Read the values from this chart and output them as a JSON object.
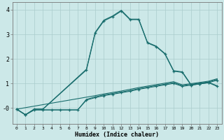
{
  "xlabel": "Humidex (Indice chaleur)",
  "bg_color": "#cce8e8",
  "grid_color": "#aacccc",
  "line_color": "#1a6e6e",
  "xlim": [
    -0.5,
    23.5
  ],
  "ylim": [
    -0.65,
    4.3
  ],
  "xticks": [
    0,
    1,
    2,
    3,
    4,
    5,
    6,
    7,
    8,
    9,
    10,
    11,
    12,
    13,
    14,
    15,
    16,
    17,
    18,
    19,
    20,
    21,
    22,
    23
  ],
  "yticks": [
    0,
    1,
    2,
    3,
    4
  ],
  "series": [
    {
      "x": [
        0,
        1,
        2,
        3,
        4,
        5,
        6,
        7,
        8,
        9,
        10,
        11,
        12,
        13,
        14,
        15,
        16,
        17,
        18,
        19,
        20,
        21,
        22,
        23
      ],
      "y": [
        -0.05,
        -0.28,
        -0.08,
        -0.08,
        -0.08,
        -0.08,
        -0.08,
        -0.08,
        0.32,
        0.42,
        0.5,
        0.56,
        0.62,
        0.68,
        0.76,
        0.82,
        0.88,
        0.94,
        1.0,
        0.88,
        0.93,
        0.98,
        1.03,
        1.13
      ],
      "marker": "+",
      "linestyle": "-",
      "linewidth": 0.8,
      "markersize": 3.5
    },
    {
      "x": [
        0,
        1,
        2,
        3,
        4,
        5,
        6,
        7,
        8,
        9,
        10,
        11,
        12,
        13,
        14,
        15,
        16,
        17,
        18,
        19,
        20,
        21,
        22,
        23
      ],
      "y": [
        -0.05,
        -0.28,
        -0.08,
        -0.08,
        -0.08,
        -0.08,
        -0.08,
        -0.08,
        0.35,
        0.45,
        0.53,
        0.59,
        0.65,
        0.71,
        0.79,
        0.85,
        0.91,
        0.97,
        1.03,
        0.91,
        0.96,
        1.01,
        1.06,
        1.16
      ],
      "marker": null,
      "linestyle": "-",
      "linewidth": 0.8,
      "markersize": 0
    },
    {
      "x": [
        0,
        9,
        10,
        11,
        12,
        13,
        14,
        15,
        16,
        17,
        18,
        19,
        20,
        21,
        22,
        23
      ],
      "y": [
        -0.05,
        0.5,
        0.57,
        0.63,
        0.69,
        0.76,
        0.83,
        0.89,
        0.95,
        1.01,
        1.07,
        0.94,
        0.99,
        1.04,
        1.09,
        1.19
      ],
      "marker": null,
      "linestyle": "-",
      "linewidth": 0.8,
      "markersize": 0
    },
    {
      "x": [
        0,
        1,
        2,
        3,
        8,
        9,
        10,
        11,
        12,
        13,
        14,
        15,
        16,
        17,
        18,
        19,
        20,
        21,
        22,
        23
      ],
      "y": [
        -0.05,
        -0.28,
        -0.05,
        -0.05,
        1.55,
        3.05,
        3.55,
        3.72,
        3.95,
        3.6,
        3.6,
        2.65,
        2.5,
        2.2,
        1.5,
        1.45,
        0.93,
        0.98,
        1.03,
        0.88
      ],
      "marker": "+",
      "linestyle": "-",
      "linewidth": 0.9,
      "markersize": 3.5
    },
    {
      "x": [
        0,
        1,
        2,
        3,
        8,
        9,
        10,
        11,
        12,
        13,
        14,
        15,
        16,
        17,
        18,
        19,
        20,
        21,
        22,
        23
      ],
      "y": [
        -0.05,
        -0.28,
        -0.05,
        -0.05,
        1.58,
        3.08,
        3.58,
        3.75,
        3.98,
        3.62,
        3.62,
        2.67,
        2.52,
        2.22,
        1.52,
        1.47,
        0.95,
        1.0,
        1.05,
        0.9
      ],
      "marker": null,
      "linestyle": "-",
      "linewidth": 0.8,
      "markersize": 0
    }
  ]
}
